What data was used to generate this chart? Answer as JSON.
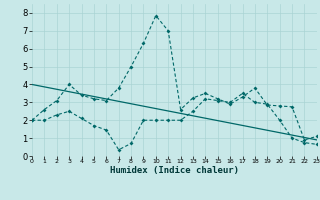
{
  "bg_color": "#c8e8e8",
  "grid_color": "#aad4d4",
  "line_color": "#006868",
  "xlabel": "Humidex (Indice chaleur)",
  "xlim": [
    0,
    23
  ],
  "ylim": [
    0,
    8.5
  ],
  "xticks": [
    0,
    1,
    2,
    3,
    4,
    5,
    6,
    7,
    8,
    9,
    10,
    11,
    12,
    13,
    14,
    15,
    16,
    17,
    18,
    19,
    20,
    21,
    22,
    23
  ],
  "yticks": [
    0,
    1,
    2,
    3,
    4,
    5,
    6,
    7,
    8
  ],
  "s1x": [
    0,
    1,
    2,
    3,
    4,
    5,
    6,
    7,
    8,
    9,
    10,
    11,
    12,
    13,
    14,
    15,
    16,
    17,
    18,
    19,
    20,
    21,
    22,
    23
  ],
  "s1y": [
    2.0,
    2.6,
    3.1,
    4.0,
    3.4,
    3.2,
    3.1,
    3.8,
    5.0,
    6.3,
    7.85,
    7.0,
    2.6,
    3.25,
    3.5,
    3.2,
    2.9,
    3.3,
    3.8,
    2.85,
    2.8,
    2.75,
    0.9,
    1.1
  ],
  "s2x": [
    0,
    1,
    2,
    3,
    4,
    5,
    6,
    7,
    8,
    9,
    10,
    11,
    12,
    13,
    14,
    15,
    16,
    17,
    18,
    19,
    20,
    21,
    22,
    23
  ],
  "s2y": [
    2.0,
    2.0,
    2.3,
    2.5,
    2.1,
    1.7,
    1.45,
    0.35,
    0.7,
    2.0,
    2.0,
    2.0,
    2.0,
    2.5,
    3.2,
    3.1,
    3.0,
    3.5,
    3.0,
    2.9,
    2.0,
    1.0,
    0.75,
    0.65
  ],
  "s3x": [
    0,
    23
  ],
  "s3y": [
    4.0,
    0.9
  ]
}
